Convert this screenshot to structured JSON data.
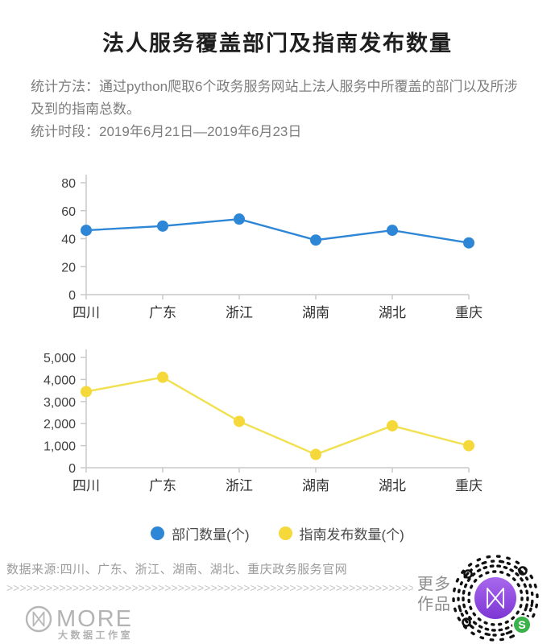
{
  "page": {
    "title": "法人服务覆盖部门及指南发布数量",
    "method_text": "统计方法：通过python爬取6个政务服务网站上法人服务中所覆盖的部门以及所涉及到的指南总数。",
    "period_text": "统计时段：2019年6月21日—2019年6月23日"
  },
  "chart_data": [
    {
      "type": "line",
      "title": "部门数量",
      "categories": [
        "四川",
        "广东",
        "浙江",
        "湖南",
        "湖北",
        "重庆"
      ],
      "series": [
        {
          "name": "部门数量(个)",
          "values": [
            46,
            49,
            54,
            39,
            46,
            37
          ]
        }
      ],
      "xlabel": "",
      "ylabel": "",
      "ylim": [
        0,
        80
      ],
      "yticks": [
        0,
        20,
        40,
        60,
        80
      ],
      "grid": false,
      "line_color": "#2E86D6",
      "point_color": "#2E86D6"
    },
    {
      "type": "line",
      "title": "指南发布数量",
      "categories": [
        "四川",
        "广东",
        "浙江",
        "湖南",
        "湖北",
        "重庆"
      ],
      "series": [
        {
          "name": "指南发布数量(个)",
          "values": [
            3450,
            4100,
            2100,
            600,
            1900,
            1000
          ]
        }
      ],
      "xlabel": "",
      "ylabel": "",
      "ylim": [
        0,
        5000
      ],
      "yticks": [
        0,
        1000,
        2000,
        3000,
        4000,
        5000
      ],
      "grid": false,
      "line_color": "#F1E04F",
      "point_color": "#F5D83A"
    }
  ],
  "legend": {
    "items": [
      {
        "label": "部门数量(个)",
        "color": "#2E86D6"
      },
      {
        "label": "指南发布数量(个)",
        "color": "#F5D83A"
      }
    ],
    "position": "bottom-center"
  },
  "footer": {
    "source": "数据来源:四川、广东、浙江、湖南、湖北、重庆政务服务官网",
    "chevrons": ">>>>>>>>>>>>>>>>>>>>>>>>>>>>>>>>>>>>>>>>>>>>>>>>>>>>>>>>>>>>>>>>>",
    "logo_text": "MORE",
    "logo_subtext": "大数据工作室",
    "more_works_line1": "更多",
    "more_works_line2": "作品",
    "qr_badge": "S"
  }
}
